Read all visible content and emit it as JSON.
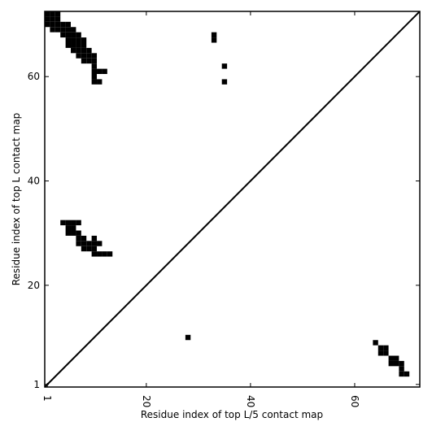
{
  "chart_data": {
    "type": "contact-map",
    "xlabel": "Residue index of top L/5 contact map",
    "ylabel": "Residue index of top L contact map",
    "xlim": [
      0.5,
      72.5
    ],
    "ylim": [
      0.5,
      72.5
    ],
    "xticks": [
      1,
      20,
      40,
      60
    ],
    "yticks": [
      1,
      20,
      40,
      60
    ],
    "color": "#000000",
    "x": [
      1,
      2,
      3,
      1,
      2,
      3,
      1,
      2,
      3,
      4,
      5,
      2,
      3,
      4,
      5,
      6,
      4,
      5,
      6,
      7,
      5,
      6,
      7,
      8,
      5,
      6,
      7,
      8,
      6,
      7,
      8,
      9,
      7,
      8,
      9,
      10,
      8,
      9,
      10,
      10,
      10,
      11,
      12,
      10,
      10,
      11,
      33,
      33,
      35,
      35,
      4,
      5,
      6,
      7,
      5,
      6,
      5,
      6,
      7,
      7,
      8,
      10,
      7,
      8,
      9,
      10,
      11,
      8,
      9,
      10,
      10,
      11,
      12,
      13,
      28,
      64,
      65,
      66,
      65,
      66,
      67,
      68,
      67,
      68,
      69,
      69,
      69,
      70
    ],
    "values": [
      72,
      72,
      72,
      71,
      71,
      71,
      70,
      70,
      70,
      70,
      70,
      69,
      69,
      69,
      69,
      69,
      68,
      68,
      68,
      68,
      67,
      67,
      67,
      67,
      66,
      66,
      66,
      66,
      65,
      65,
      65,
      65,
      64,
      64,
      64,
      64,
      63,
      63,
      63,
      62,
      61,
      61,
      61,
      60,
      59,
      59,
      68,
      67,
      62,
      59,
      32,
      32,
      32,
      32,
      31,
      31,
      30,
      30,
      30,
      29,
      29,
      29,
      28,
      28,
      28,
      28,
      28,
      27,
      27,
      27,
      26,
      26,
      26,
      26,
      10,
      9,
      8,
      8,
      7,
      7,
      6,
      6,
      5,
      5,
      5,
      4,
      3,
      3
    ]
  }
}
